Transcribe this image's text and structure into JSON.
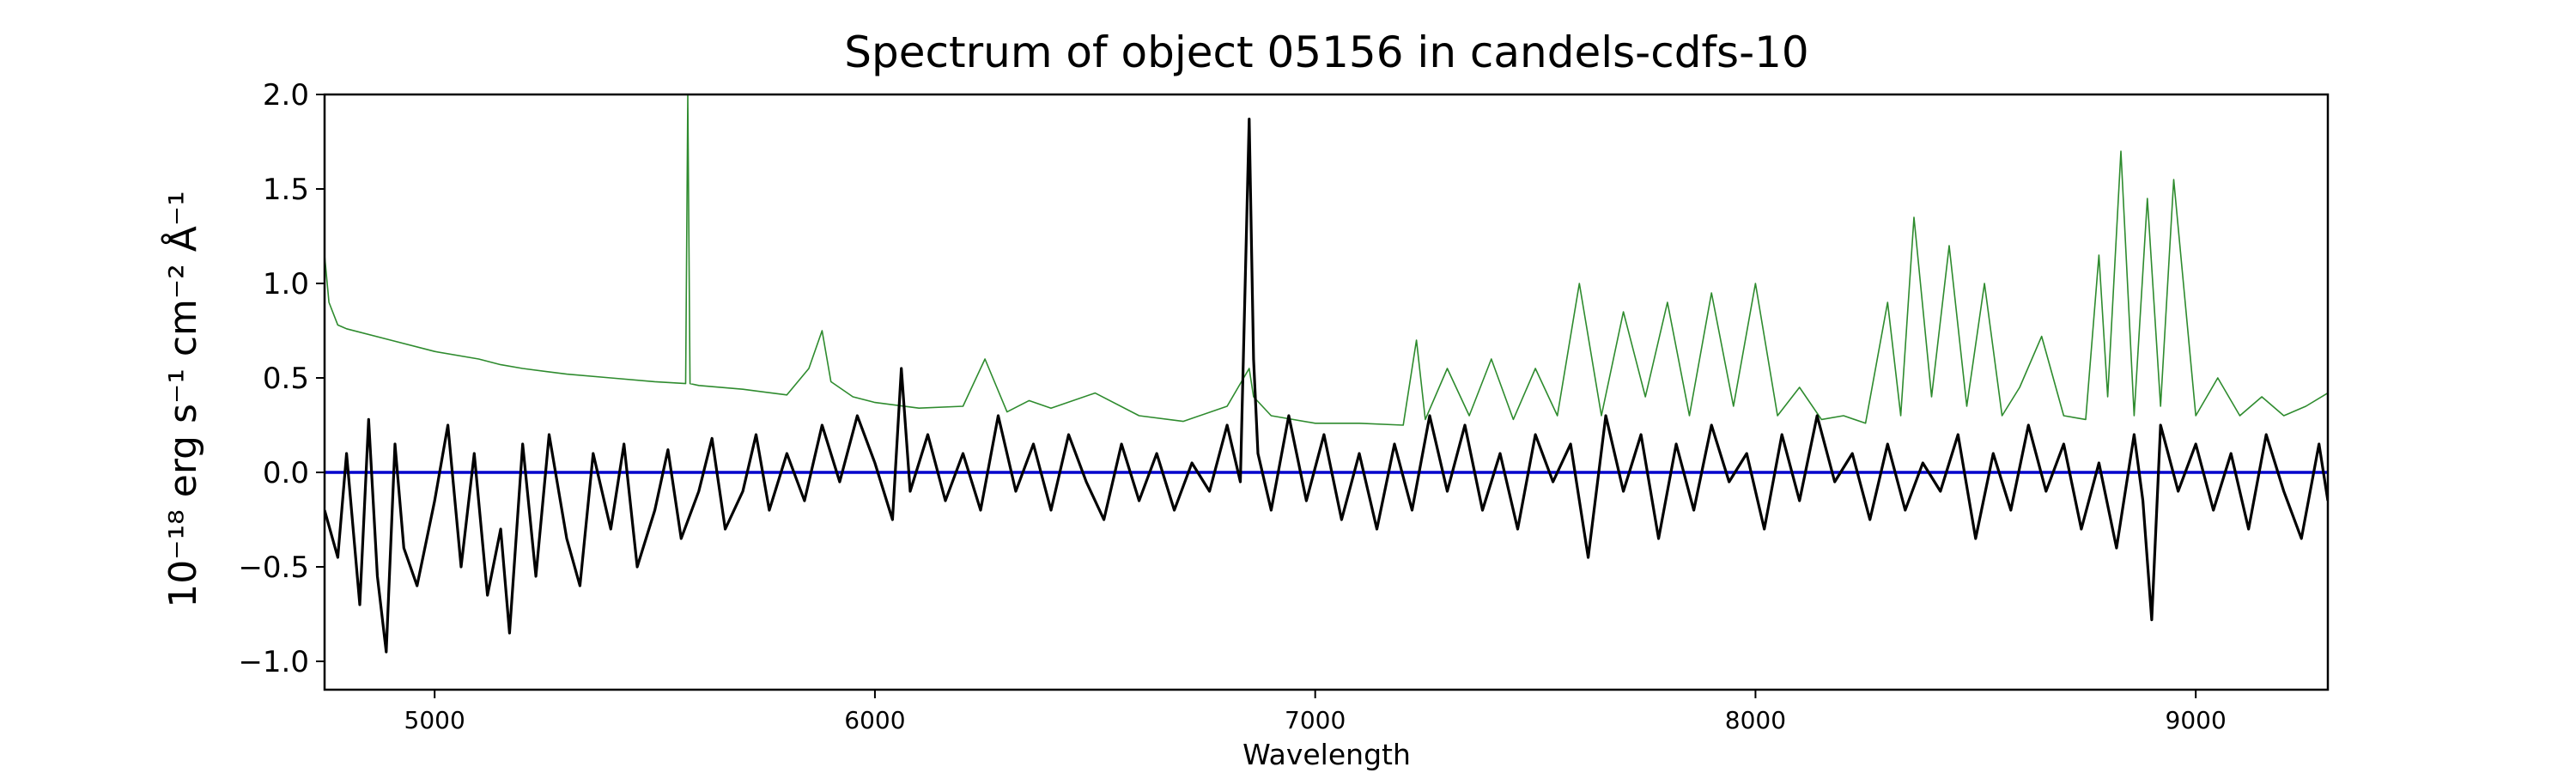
{
  "chart_data": {
    "type": "line",
    "title": "Spectrum of object 05156 in candels-cdfs-10",
    "xlabel": "Wavelength",
    "ylabel": "10⁻¹⁸ erg s⁻¹ cm⁻² Å⁻¹",
    "xlim": [
      4750,
      9300
    ],
    "ylim": [
      -1.15,
      2.0
    ],
    "xticks": [
      5000,
      6000,
      7000,
      8000,
      9000
    ],
    "xtick_labels": [
      "5000",
      "6000",
      "7000",
      "8000",
      "9000"
    ],
    "yticks": [
      -1.0,
      -0.5,
      0.0,
      0.5,
      1.0,
      1.5,
      2.0
    ],
    "ytick_labels": [
      "−1.0",
      "−0.5",
      "0.0",
      "0.5",
      "1.0",
      "1.5",
      "2.0"
    ],
    "grid": false,
    "legend": "none",
    "series": [
      {
        "role": "zero-line",
        "color": "#0000cc",
        "x": [
          4750,
          9300
        ],
        "y": [
          0.0,
          0.0
        ]
      },
      {
        "role": "error",
        "color": "#2e8b2e",
        "x": [
          4750,
          4760,
          4780,
          4800,
          4900,
          5000,
          5100,
          5150,
          5200,
          5300,
          5400,
          5500,
          5570,
          5575,
          5580,
          5600,
          5700,
          5800,
          5850,
          5880,
          5900,
          5950,
          6000,
          6100,
          6200,
          6250,
          6300,
          6350,
          6400,
          6500,
          6600,
          6700,
          6800,
          6850,
          6860,
          6900,
          7000,
          7100,
          7200,
          7230,
          7250,
          7300,
          7350,
          7400,
          7450,
          7500,
          7550,
          7600,
          7650,
          7700,
          7750,
          7800,
          7850,
          7900,
          7950,
          8000,
          8050,
          8100,
          8150,
          8200,
          8250,
          8300,
          8330,
          8360,
          8400,
          8440,
          8480,
          8520,
          8560,
          8600,
          8650,
          8700,
          8750,
          8780,
          8800,
          8830,
          8860,
          8890,
          8920,
          8950,
          9000,
          9050,
          9100,
          9150,
          9200,
          9250,
          9300
        ],
        "y": [
          1.15,
          0.9,
          0.78,
          0.76,
          0.7,
          0.64,
          0.6,
          0.57,
          0.55,
          0.52,
          0.5,
          0.48,
          0.47,
          2.0,
          0.47,
          0.46,
          0.44,
          0.41,
          0.55,
          0.75,
          0.48,
          0.4,
          0.37,
          0.34,
          0.35,
          0.6,
          0.32,
          0.38,
          0.34,
          0.42,
          0.3,
          0.27,
          0.35,
          0.55,
          0.4,
          0.3,
          0.26,
          0.26,
          0.25,
          0.7,
          0.28,
          0.55,
          0.3,
          0.6,
          0.28,
          0.55,
          0.3,
          1.0,
          0.3,
          0.85,
          0.4,
          0.9,
          0.3,
          0.95,
          0.35,
          1.0,
          0.3,
          0.45,
          0.28,
          0.3,
          0.26,
          0.9,
          0.3,
          1.35,
          0.4,
          1.2,
          0.35,
          1.0,
          0.3,
          0.45,
          0.72,
          0.3,
          0.28,
          1.15,
          0.4,
          1.7,
          0.3,
          1.45,
          0.35,
          1.55,
          0.3,
          0.5,
          0.3,
          0.4,
          0.3,
          0.35,
          0.42
        ]
      },
      {
        "role": "flux",
        "color": "#000000",
        "x": [
          4750,
          4780,
          4800,
          4830,
          4850,
          4870,
          4890,
          4910,
          4930,
          4960,
          5000,
          5030,
          5060,
          5090,
          5120,
          5150,
          5170,
          5200,
          5230,
          5260,
          5300,
          5330,
          5360,
          5400,
          5430,
          5460,
          5500,
          5530,
          5560,
          5600,
          5630,
          5660,
          5700,
          5730,
          5760,
          5800,
          5840,
          5880,
          5920,
          5960,
          6000,
          6040,
          6060,
          6080,
          6120,
          6160,
          6200,
          6240,
          6280,
          6320,
          6360,
          6400,
          6440,
          6480,
          6520,
          6560,
          6600,
          6640,
          6680,
          6720,
          6760,
          6800,
          6830,
          6850,
          6860,
          6870,
          6900,
          6940,
          6980,
          7020,
          7060,
          7100,
          7140,
          7180,
          7220,
          7260,
          7300,
          7340,
          7380,
          7420,
          7460,
          7500,
          7540,
          7580,
          7620,
          7660,
          7700,
          7740,
          7780,
          7820,
          7860,
          7900,
          7940,
          7980,
          8020,
          8060,
          8100,
          8140,
          8180,
          8220,
          8260,
          8300,
          8340,
          8380,
          8420,
          8460,
          8500,
          8540,
          8580,
          8620,
          8660,
          8700,
          8740,
          8780,
          8820,
          8860,
          8880,
          8900,
          8920,
          8960,
          9000,
          9040,
          9080,
          9120,
          9160,
          9200,
          9240,
          9280,
          9300
        ],
        "y": [
          -0.2,
          -0.45,
          0.1,
          -0.7,
          0.28,
          -0.55,
          -0.95,
          0.15,
          -0.4,
          -0.6,
          -0.15,
          0.25,
          -0.5,
          0.1,
          -0.65,
          -0.3,
          -0.85,
          0.15,
          -0.55,
          0.2,
          -0.35,
          -0.6,
          0.1,
          -0.3,
          0.15,
          -0.5,
          -0.2,
          0.12,
          -0.35,
          -0.1,
          0.18,
          -0.3,
          -0.1,
          0.2,
          -0.2,
          0.1,
          -0.15,
          0.25,
          -0.05,
          0.3,
          0.05,
          -0.25,
          0.55,
          -0.1,
          0.2,
          -0.15,
          0.1,
          -0.2,
          0.3,
          -0.1,
          0.15,
          -0.2,
          0.2,
          -0.05,
          -0.25,
          0.15,
          -0.15,
          0.1,
          -0.2,
          0.05,
          -0.1,
          0.25,
          -0.05,
          1.87,
          0.6,
          0.1,
          -0.2,
          0.3,
          -0.15,
          0.2,
          -0.25,
          0.1,
          -0.3,
          0.15,
          -0.2,
          0.3,
          -0.1,
          0.25,
          -0.2,
          0.1,
          -0.3,
          0.2,
          -0.05,
          0.15,
          -0.45,
          0.3,
          -0.1,
          0.2,
          -0.35,
          0.15,
          -0.2,
          0.25,
          -0.05,
          0.1,
          -0.3,
          0.2,
          -0.15,
          0.3,
          -0.05,
          0.1,
          -0.25,
          0.15,
          -0.2,
          0.05,
          -0.1,
          0.2,
          -0.35,
          0.1,
          -0.2,
          0.25,
          -0.1,
          0.15,
          -0.3,
          0.05,
          -0.4,
          0.2,
          -0.15,
          -0.78,
          0.25,
          -0.1,
          0.15,
          -0.2,
          0.1,
          -0.3,
          0.2,
          -0.1,
          -0.35,
          0.15,
          -0.15
        ]
      }
    ]
  }
}
